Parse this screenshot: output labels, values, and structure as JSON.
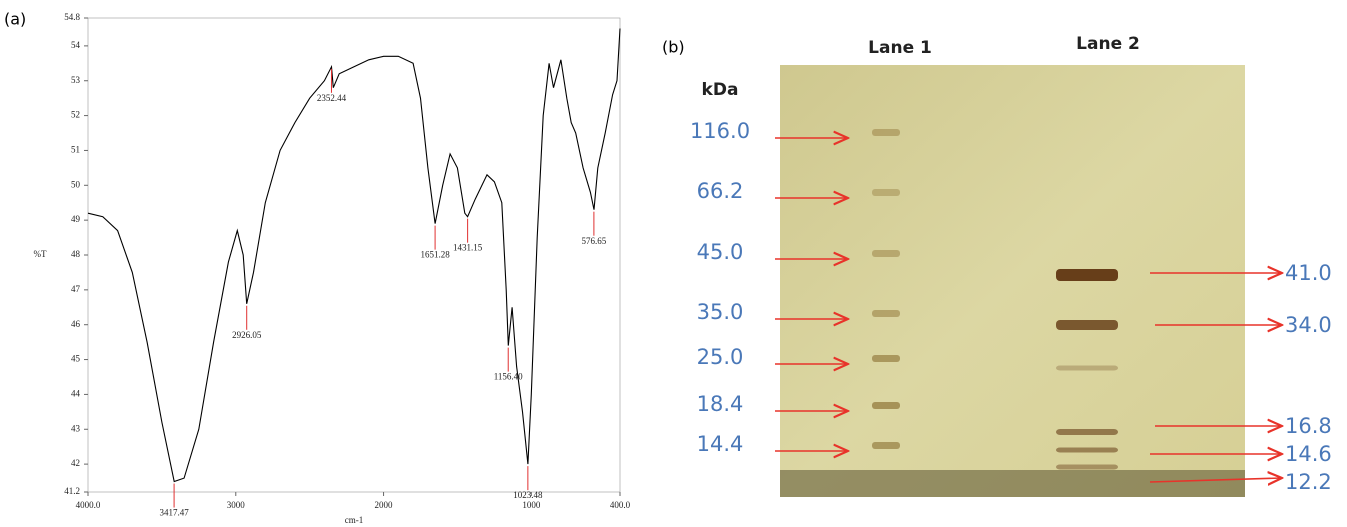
{
  "panel_a_label": "(a)",
  "panel_b_label": "(b)",
  "chart_data": [
    {
      "type": "line",
      "xlabel": "cm-1",
      "ylabel": "%T",
      "color": "#000000",
      "xlim": [
        4000,
        400
      ],
      "ylim": [
        41.2,
        54.8
      ],
      "xticks": [
        {
          "value": 4000,
          "label": "4000.0"
        },
        3000,
        2000,
        1000,
        {
          "value": 400,
          "label": "400.0"
        }
      ],
      "yticks": [
        41.2,
        42,
        43,
        44,
        45,
        46,
        47,
        48,
        49,
        50,
        51,
        52,
        53,
        54,
        54.8
      ],
      "x": [
        4000,
        3900,
        3800,
        3700,
        3600,
        3500,
        3417,
        3350,
        3250,
        3150,
        3050,
        2990,
        2950,
        2926,
        2880,
        2800,
        2700,
        2600,
        2500,
        2400,
        2352,
        2340,
        2300,
        2200,
        2100,
        2000,
        1900,
        1800,
        1750,
        1700,
        1651,
        1600,
        1550,
        1500,
        1450,
        1431,
        1380,
        1300,
        1250,
        1200,
        1170,
        1156,
        1130,
        1100,
        1060,
        1023,
        1000,
        960,
        920,
        880,
        850,
        800,
        760,
        730,
        700,
        650,
        600,
        576,
        550,
        500,
        450,
        420,
        400
      ],
      "values": [
        49.2,
        49.1,
        48.7,
        47.5,
        45.5,
        43.2,
        41.5,
        41.6,
        43.0,
        45.5,
        47.8,
        48.7,
        48.0,
        46.6,
        47.5,
        49.5,
        51.0,
        51.8,
        52.5,
        53.0,
        53.4,
        52.8,
        53.2,
        53.4,
        53.6,
        53.7,
        53.7,
        53.5,
        52.5,
        50.5,
        48.9,
        50.0,
        50.9,
        50.5,
        49.2,
        49.1,
        49.6,
        50.3,
        50.1,
        49.5,
        47.0,
        45.4,
        46.5,
        44.8,
        43.5,
        42.0,
        44.0,
        48.5,
        52.0,
        53.5,
        52.8,
        53.6,
        52.5,
        51.8,
        51.5,
        50.5,
        49.8,
        49.3,
        50.5,
        51.5,
        52.6,
        53.0,
        54.5
      ],
      "annotations": [
        {
          "x": 3417.47,
          "y": 41.5,
          "label": "3417.47"
        },
        {
          "x": 2926.05,
          "y": 46.6,
          "label": "2926.05"
        },
        {
          "x": 2352.44,
          "y": 53.4,
          "label": "2352.44"
        },
        {
          "x": 1651.28,
          "y": 48.9,
          "label": "1651.28"
        },
        {
          "x": 1431.15,
          "y": 49.1,
          "label": "1431.15"
        },
        {
          "x": 1156.4,
          "y": 45.4,
          "label": "1156.40"
        },
        {
          "x": 1023.48,
          "y": 42.0,
          "label": "1023.48"
        },
        {
          "x": 576.65,
          "y": 49.3,
          "label": "576.65"
        }
      ]
    }
  ],
  "gel": {
    "lanes": [
      "Lane 1",
      "Lane 2"
    ],
    "unit": "kDa",
    "marker_labels": [
      "116.0",
      "66.2",
      "45.0",
      "35.0",
      "25.0",
      "18.4",
      "14.4"
    ],
    "sample_labels": [
      "41.0",
      "34.0",
      "16.8",
      "14.6",
      "12.2"
    ]
  }
}
